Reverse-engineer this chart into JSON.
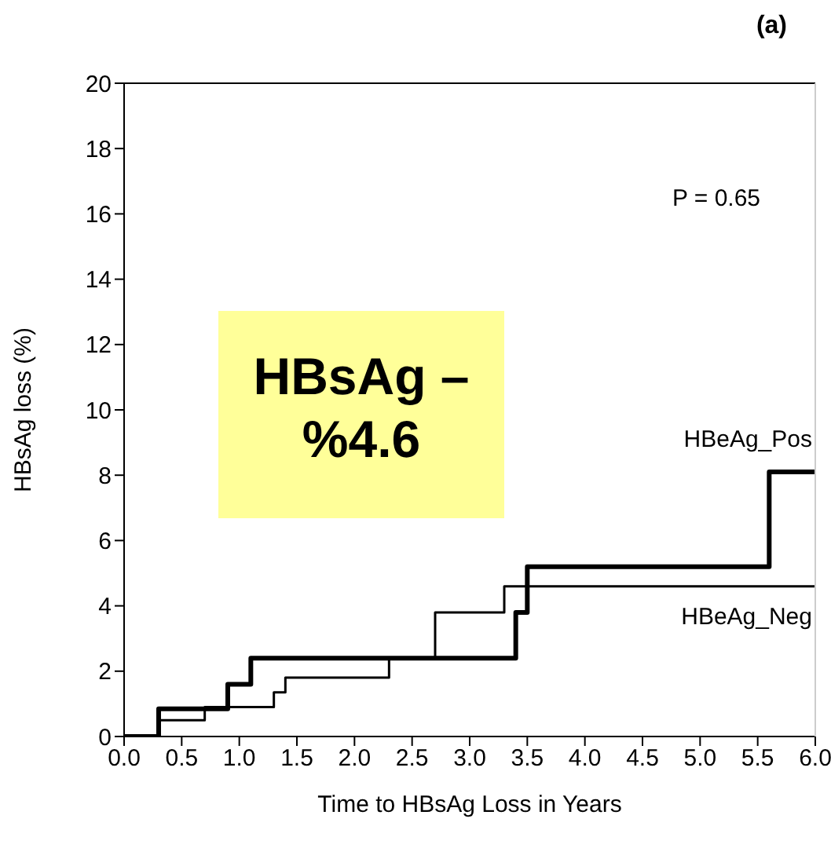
{
  "chart_data": {
    "type": "step",
    "title": "(a)",
    "xlabel": "Time to HBsAg Loss in Years",
    "ylabel": "HBsAg loss (%)",
    "annotations": [
      "P = 0.65",
      "HBsAg –\n%4.6"
    ],
    "series": [
      {
        "name": "HBeAg_Pos",
        "color": "#000000",
        "x": [
          0,
          0.3,
          0.9,
          1.1,
          3.4,
          3.5,
          5.6,
          6.0
        ],
        "values": [
          0,
          0.85,
          1.6,
          2.4,
          3.8,
          5.2,
          8.1,
          8.1
        ]
      },
      {
        "name": "HBeAg_Neg",
        "color": "#000000",
        "x": [
          0,
          0.3,
          0.7,
          1.3,
          1.4,
          2.3,
          2.7,
          3.3,
          6.0
        ],
        "values": [
          0,
          0.5,
          0.9,
          1.35,
          1.8,
          2.4,
          3.8,
          4.6,
          4.6
        ]
      }
    ],
    "xlim": [
      0,
      6
    ],
    "xticks": [
      {
        "value": 0,
        "label": "0.0"
      },
      {
        "value": 0.5,
        "label": "0.5"
      },
      {
        "value": 1,
        "label": "1.0"
      },
      {
        "value": 1.5,
        "label": "1.5"
      },
      {
        "value": 2,
        "label": "2.0"
      },
      {
        "value": 2.5,
        "label": "2.5"
      },
      {
        "value": 3,
        "label": "3.0"
      },
      {
        "value": 3.5,
        "label": "3.5"
      },
      {
        "value": 4,
        "label": "4.0"
      },
      {
        "value": 4.5,
        "label": "4.5"
      },
      {
        "value": 5,
        "label": "5.0"
      },
      {
        "value": 5.5,
        "label": "5.5"
      },
      {
        "value": 6,
        "label": "6.0"
      }
    ],
    "ylim": [
      0,
      20
    ],
    "yticks": [
      0,
      2,
      4,
      6,
      8,
      10,
      12,
      14,
      16,
      18,
      20
    ],
    "marker": "none",
    "line_style": "solid"
  }
}
